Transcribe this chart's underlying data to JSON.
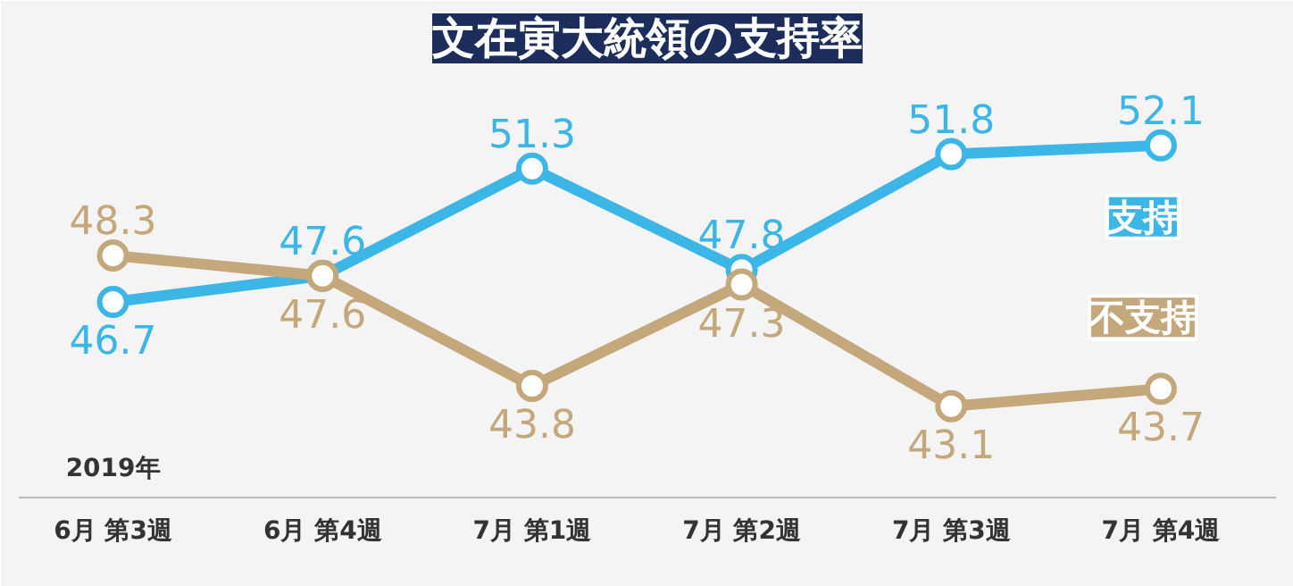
{
  "chart_data": {
    "type": "line",
    "title": "文在寅大統領の支持率",
    "categories": [
      "6月 第3週",
      "6月 第4週",
      "7月 第1週",
      "7月 第2週",
      "7月 第3週",
      "7月 第4週"
    ],
    "series": [
      {
        "name": "支持",
        "color": "#3cb6e6",
        "values": [
          46.7,
          47.6,
          51.3,
          47.8,
          51.8,
          52.1
        ]
      },
      {
        "name": "不支持",
        "color": "#c4a77a",
        "values": [
          48.3,
          47.6,
          43.8,
          47.3,
          43.1,
          43.7
        ]
      }
    ],
    "data_labels": true,
    "marker": "circle",
    "line_style": "solid",
    "grid": false,
    "annotations": [
      "2019年"
    ]
  }
}
